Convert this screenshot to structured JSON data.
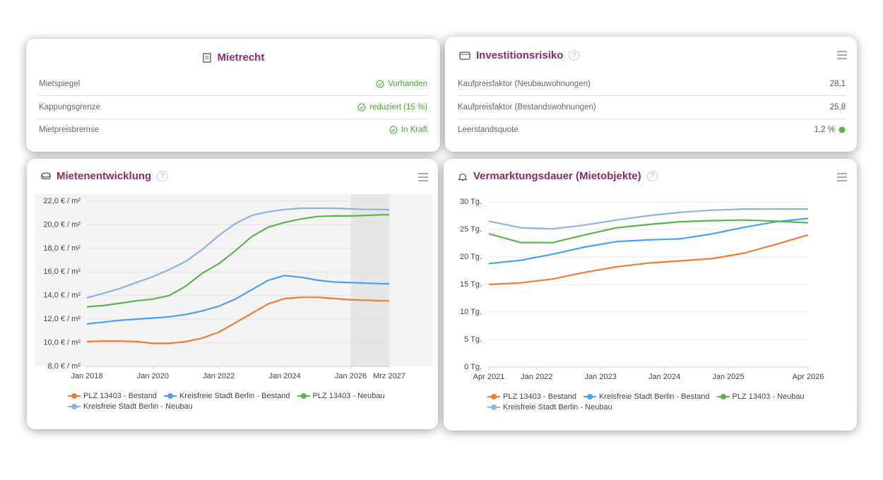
{
  "panels": [
    {
      "title": "Mietrecht",
      "rows": [
        {
          "label": "Mietspiegel",
          "value": "Vorhanden"
        },
        {
          "label": "Kappungsgrenze",
          "value": "reduziert (15 %)"
        },
        {
          "label": "Mietpreisbremse",
          "value": "In Kraft"
        }
      ]
    },
    {
      "title": "Investitionsrisiko",
      "help": "?",
      "rows": [
        {
          "label": "Kaufpreisfaktor (Neubauwohnungen)",
          "value": "28,1"
        },
        {
          "label": "Kaufpreisfaktor (Bestandswohnungen)",
          "value": "25,8"
        },
        {
          "label": "Leerstandsquote",
          "value": "1,2 %"
        }
      ]
    }
  ],
  "chart_data": [
    {
      "type": "line",
      "title": "Mietenentwicklung",
      "help": "?",
      "grid": true,
      "forecast_from": "2026-01",
      "x": [
        "2018-01",
        "2018-07",
        "2019-01",
        "2019-07",
        "2020-01",
        "2020-07",
        "2021-01",
        "2021-07",
        "2022-01",
        "2022-07",
        "2023-01",
        "2023-07",
        "2024-01",
        "2024-07",
        "2025-01",
        "2025-07",
        "2026-01",
        "2026-07",
        "2027-01",
        "2027-03"
      ],
      "xlim": [
        "2018-01",
        "2027-03"
      ],
      "xticks": [
        {
          "value": "2018-01",
          "label": "Jan 2018"
        },
        {
          "value": "2020-01",
          "label": "Jan 2020"
        },
        {
          "value": "2022-01",
          "label": "Jan 2022"
        },
        {
          "value": "2024-01",
          "label": "Jan 2024"
        },
        {
          "value": "2026-01",
          "label": "Jan 2026"
        },
        {
          "value": "2027-03",
          "label": "Mrz 2027"
        }
      ],
      "ylim": [
        8,
        22
      ],
      "yticks": [
        {
          "value": 8,
          "label": "8,0 € / m²"
        },
        {
          "value": 10,
          "label": "10,0 € / m²"
        },
        {
          "value": 12,
          "label": "12,0 € / m²"
        },
        {
          "value": 14,
          "label": "14,0 € / m²"
        },
        {
          "value": 16,
          "label": "16,0 € / m²"
        },
        {
          "value": 18,
          "label": "18,0 € / m²"
        },
        {
          "value": 20,
          "label": "20,0 € / m²"
        },
        {
          "value": 22,
          "label": "22,0 € / m²"
        }
      ],
      "series": [
        {
          "name": "PLZ 13403 - Bestand",
          "color": "#f07c36",
          "values": [
            10.1,
            10.15,
            10.15,
            10.1,
            9.95,
            9.95,
            10.1,
            10.4,
            10.9,
            11.7,
            12.5,
            13.3,
            13.75,
            13.85,
            13.85,
            13.75,
            13.65,
            13.6,
            13.55,
            13.55
          ]
        },
        {
          "name": "Kreisfreie Stadt Berlin - Bestand",
          "color": "#4a9ff5",
          "values": [
            11.6,
            11.75,
            11.9,
            12.0,
            12.1,
            12.2,
            12.4,
            12.7,
            13.1,
            13.7,
            14.5,
            15.3,
            15.7,
            15.55,
            15.3,
            15.15,
            15.1,
            15.05,
            15.0,
            15.0
          ]
        },
        {
          "name": "PLZ 13403 - Neubau",
          "color": "#5cb34f",
          "values": [
            13.05,
            13.15,
            13.35,
            13.55,
            13.7,
            14.0,
            14.8,
            15.9,
            16.7,
            17.8,
            19.0,
            19.8,
            20.2,
            20.5,
            20.7,
            20.75,
            20.75,
            20.8,
            20.85,
            20.85
          ]
        },
        {
          "name": "Kreisfreie Stadt Berlin - Neubau",
          "color": "#8eb2e2",
          "values": [
            13.8,
            14.2,
            14.6,
            15.1,
            15.6,
            16.2,
            16.9,
            17.9,
            19.1,
            20.1,
            20.8,
            21.1,
            21.3,
            21.4,
            21.4,
            21.4,
            21.35,
            21.3,
            21.3,
            21.25
          ]
        }
      ]
    },
    {
      "type": "line",
      "title": "Vermarktungsdauer (Mietobjekte)",
      "help": "?",
      "grid": true,
      "x": [
        "2021-04",
        "2021-10",
        "2022-04",
        "2022-10",
        "2023-04",
        "2023-10",
        "2024-04",
        "2024-10",
        "2025-04",
        "2025-10",
        "2026-04"
      ],
      "xlim": [
        "2021-04",
        "2026-04"
      ],
      "xticks": [
        {
          "value": "2021-04",
          "label": "Apr 2021"
        },
        {
          "value": "2022-01",
          "label": "Jan 2022"
        },
        {
          "value": "2023-01",
          "label": "Jan 2023"
        },
        {
          "value": "2024-01",
          "label": "Jan 2024"
        },
        {
          "value": "2025-01",
          "label": "Jan 2025"
        },
        {
          "value": "2026-04",
          "label": "Apr 2026"
        }
      ],
      "ylim": [
        0,
        30
      ],
      "yticks": [
        {
          "value": 0,
          "label": "0 Tg."
        },
        {
          "value": 5,
          "label": "5 Tg."
        },
        {
          "value": 10,
          "label": "10 Tg."
        },
        {
          "value": 15,
          "label": "15 Tg."
        },
        {
          "value": 20,
          "label": "20 Tg."
        },
        {
          "value": 25,
          "label": "25 Tg."
        },
        {
          "value": 30,
          "label": "30 Tg."
        }
      ],
      "series": [
        {
          "name": "PLZ 13403 - Bestand",
          "color": "#f07c36",
          "values": [
            15.0,
            15.3,
            16.0,
            17.2,
            18.2,
            18.9,
            19.3,
            19.7,
            20.7,
            22.3,
            24.0
          ]
        },
        {
          "name": "Kreisfreie Stadt Berlin - Bestand",
          "color": "#4a9ff5",
          "values": [
            18.8,
            19.4,
            20.5,
            21.8,
            22.8,
            23.1,
            23.3,
            24.2,
            25.4,
            26.4,
            27.0
          ]
        },
        {
          "name": "PLZ 13403 - Neubau",
          "color": "#5cb34f",
          "values": [
            24.2,
            22.6,
            22.6,
            24.0,
            25.3,
            25.9,
            26.4,
            26.6,
            26.7,
            26.5,
            26.2
          ]
        },
        {
          "name": "Kreisfreie Stadt Berlin - Neubau",
          "color": "#8eb2e2",
          "values": [
            26.5,
            25.3,
            25.1,
            25.8,
            26.7,
            27.5,
            28.1,
            28.5,
            28.7,
            28.7,
            28.7
          ]
        }
      ]
    }
  ]
}
